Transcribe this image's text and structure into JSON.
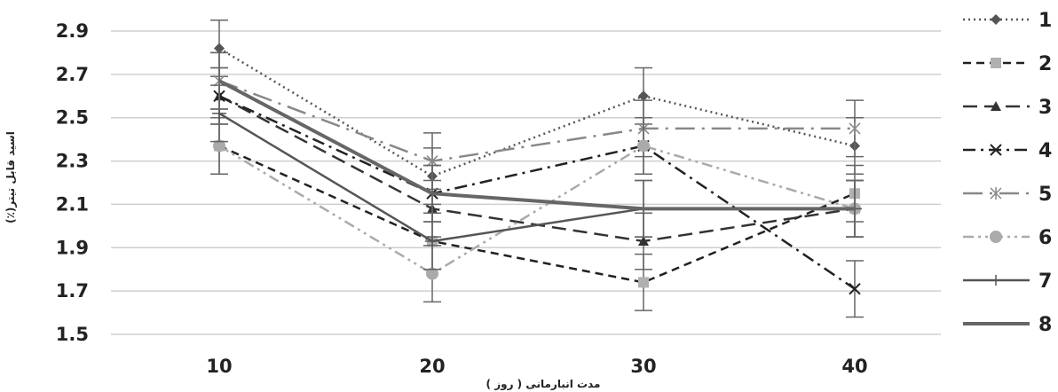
{
  "chart_data": {
    "type": "line",
    "title": "",
    "xlabel": "مدت انبارمانی ( روز )",
    "ylabel": "اسید قابل تیتر(٪)",
    "x": [
      10,
      20,
      30,
      40
    ],
    "x_tick_labels": [
      "10",
      "20",
      "30",
      "40"
    ],
    "y_tick_labels": [
      "2.9",
      "2.7",
      "2.5",
      "2.3",
      "2.1",
      "1.9",
      "1.7",
      "1.5"
    ],
    "ylim": [
      1.5,
      2.95
    ],
    "grid": "horizontal",
    "legend_position": "right",
    "series": [
      {
        "name": "1",
        "values": [
          2.82,
          2.23,
          2.6,
          2.37
        ],
        "color": "#555555",
        "dash": "dotted",
        "marker": "diamond",
        "error": [
          0.13,
          0.13,
          0.13,
          0.13
        ]
      },
      {
        "name": "2",
        "values": [
          2.37,
          1.93,
          1.74,
          2.15
        ],
        "color": "#222222",
        "dash": "dashed",
        "marker": "square",
        "error": [
          0.13,
          0.13,
          0.13,
          0.13
        ]
      },
      {
        "name": "3",
        "values": [
          2.6,
          2.08,
          1.93,
          2.08
        ],
        "color": "#333333",
        "dash": "longdash",
        "marker": "triangle",
        "error": [
          0.13,
          0.13,
          0.13,
          0.13
        ]
      },
      {
        "name": "4",
        "values": [
          2.6,
          2.15,
          2.37,
          1.71
        ],
        "color": "#222222",
        "dash": "dashdot",
        "marker": "x",
        "error": [
          0.13,
          0.13,
          0.13,
          0.13
        ]
      },
      {
        "name": "5",
        "values": [
          2.67,
          2.3,
          2.45,
          2.45
        ],
        "color": "#888888",
        "dash": "longdashdot",
        "marker": "star",
        "error": [
          0.13,
          0.13,
          0.13,
          0.13
        ]
      },
      {
        "name": "6",
        "values": [
          2.37,
          1.78,
          2.37,
          2.08
        ],
        "color": "#aaaaaa",
        "dash": "dashdotdot",
        "marker": "circle",
        "error": [
          0.13,
          0.13,
          0.13,
          0.13
        ]
      },
      {
        "name": "7",
        "values": [
          2.52,
          1.93,
          2.08,
          2.08
        ],
        "color": "#555555",
        "dash": "solid",
        "marker": "plus",
        "error": [
          0.13,
          0.13,
          0.13,
          0.13
        ]
      },
      {
        "name": "8",
        "values": [
          2.67,
          2.15,
          2.08,
          2.08
        ],
        "color": "#666666",
        "dash": "solid-thick",
        "marker": "none",
        "error": [
          0.13,
          0.13,
          0.13,
          0.13
        ]
      }
    ]
  }
}
